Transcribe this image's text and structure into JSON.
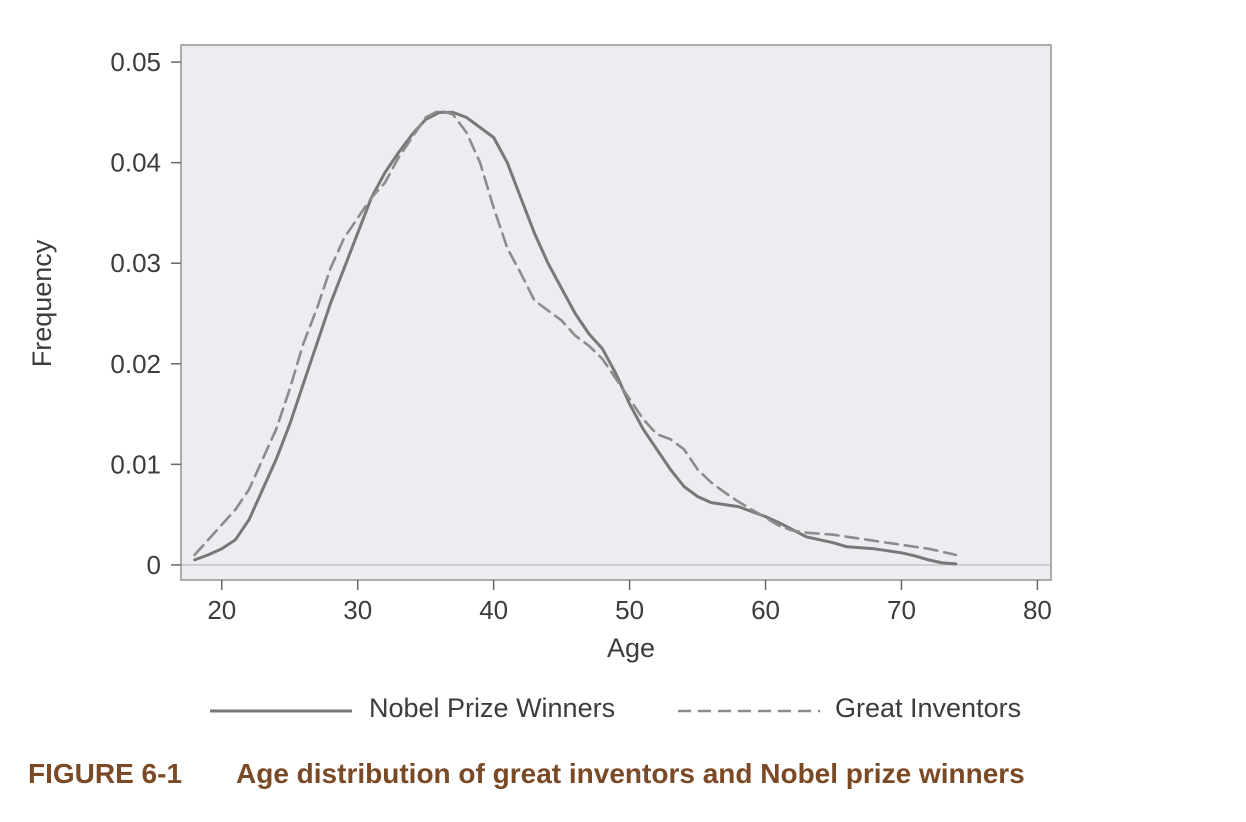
{
  "figure": {
    "label": "FIGURE 6-1",
    "caption": "Age distribution of great inventors and Nobel prize winners"
  },
  "colors": {
    "plot_background": "#ededf1",
    "frame": "#9a9a9a",
    "nobel_line": "#787878",
    "inventors_line": "#8c8c8c",
    "caption": "#7a4a26"
  },
  "chart_data": {
    "type": "line",
    "title": "",
    "xlabel": "Age",
    "ylabel": "Frequency",
    "xlim": [
      17,
      81
    ],
    "ylim": [
      -0.0015,
      0.0517
    ],
    "xticks": [
      20,
      30,
      40,
      50,
      60,
      70,
      80
    ],
    "yticks": [
      0,
      0.01,
      0.02,
      0.03,
      0.04,
      0.05
    ],
    "ytick_labels": [
      "0",
      "0.01",
      "0.02",
      "0.03",
      "0.04",
      "0.05"
    ],
    "baseline": 0,
    "legend_position": "bottom",
    "series": [
      {
        "name": "Nobel Prize Winners",
        "style": "solid",
        "x": [
          18,
          19,
          20,
          21,
          22,
          23,
          24,
          25,
          26,
          27,
          28,
          29,
          30,
          31,
          32,
          33,
          34,
          35,
          36,
          37,
          38,
          39,
          40,
          41,
          42,
          43,
          44,
          45,
          46,
          47,
          48,
          49,
          50,
          51,
          52,
          53,
          54,
          55,
          56,
          57,
          58,
          59,
          60,
          61,
          62,
          63,
          64,
          65,
          66,
          67,
          68,
          69,
          70,
          71,
          72,
          73,
          74
        ],
        "y": [
          0.0005,
          0.001,
          0.0016,
          0.0025,
          0.0045,
          0.0075,
          0.0105,
          0.014,
          0.018,
          0.022,
          0.026,
          0.0295,
          0.033,
          0.0365,
          0.039,
          0.041,
          0.0428,
          0.0443,
          0.045,
          0.045,
          0.0445,
          0.0435,
          0.0425,
          0.04,
          0.0365,
          0.033,
          0.03,
          0.0275,
          0.025,
          0.023,
          0.0215,
          0.019,
          0.016,
          0.0135,
          0.0115,
          0.0095,
          0.0078,
          0.0068,
          0.0062,
          0.006,
          0.0058,
          0.0053,
          0.0048,
          0.0042,
          0.0035,
          0.0028,
          0.0025,
          0.0022,
          0.0018,
          0.0017,
          0.0016,
          0.0014,
          0.0012,
          0.0009,
          0.0005,
          0.0002,
          0.0001
        ]
      },
      {
        "name": "Great Inventors",
        "style": "dashed",
        "x": [
          18,
          19,
          20,
          21,
          22,
          23,
          24,
          25,
          26,
          27,
          28,
          29,
          30,
          31,
          32,
          33,
          34,
          35,
          36,
          37,
          38,
          39,
          40,
          41,
          42,
          43,
          44,
          45,
          46,
          47,
          48,
          49,
          50,
          51,
          52,
          53,
          54,
          55,
          56,
          57,
          58,
          59,
          60,
          61,
          62,
          63,
          64,
          65,
          66,
          67,
          68,
          69,
          70,
          71,
          72,
          73,
          74
        ],
        "y": [
          0.001,
          0.0025,
          0.004,
          0.0055,
          0.0075,
          0.0105,
          0.0135,
          0.0175,
          0.022,
          0.0255,
          0.0295,
          0.0325,
          0.0345,
          0.0365,
          0.038,
          0.0405,
          0.0425,
          0.0445,
          0.0452,
          0.0448,
          0.043,
          0.04,
          0.0355,
          0.0315,
          0.029,
          0.0263,
          0.0253,
          0.0243,
          0.0228,
          0.0218,
          0.0205,
          0.0185,
          0.0165,
          0.0145,
          0.013,
          0.0125,
          0.0115,
          0.0095,
          0.0082,
          0.0072,
          0.0063,
          0.0055,
          0.0047,
          0.0039,
          0.0034,
          0.0032,
          0.0031,
          0.003,
          0.0028,
          0.0026,
          0.0024,
          0.0022,
          0.002,
          0.0018,
          0.0016,
          0.0013,
          0.001
        ]
      }
    ]
  }
}
